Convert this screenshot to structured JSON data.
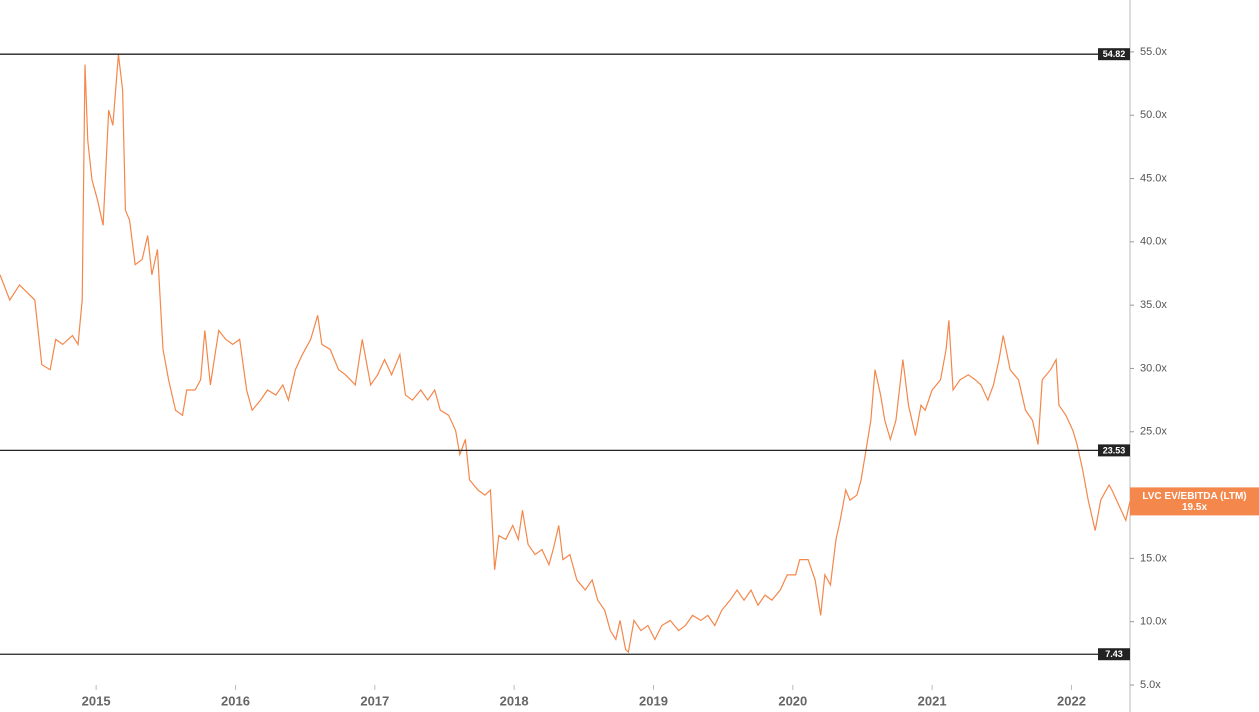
{
  "chart_data": {
    "type": "line",
    "series": [
      {
        "name": "LVC EV/EBITDA (LTM)",
        "color": "#f4874b",
        "x": [
          2014.31,
          2014.38,
          2014.45,
          2014.56,
          2014.61,
          2014.67,
          2014.71,
          2014.76,
          2014.83,
          2014.87,
          2014.9,
          2014.92,
          2014.94,
          2014.97,
          2015.01,
          2015.05,
          2015.09,
          2015.12,
          2015.16,
          2015.19,
          2015.21,
          2015.24,
          2015.28,
          2015.33,
          2015.37,
          2015.4,
          2015.44,
          2015.46,
          2015.48,
          2015.52,
          2015.57,
          2015.62,
          2015.65,
          2015.71,
          2015.75,
          2015.78,
          2015.82,
          2015.88,
          2015.93,
          2015.98,
          2016.03,
          2016.08,
          2016.12,
          2016.18,
          2016.23,
          2016.29,
          2016.34,
          2016.38,
          2016.43,
          2016.48,
          2016.54,
          2016.59,
          2016.62,
          2016.68,
          2016.74,
          2016.79,
          2016.86,
          2016.91,
          2016.97,
          2017.02,
          2017.07,
          2017.12,
          2017.18,
          2017.22,
          2017.27,
          2017.33,
          2017.38,
          2017.43,
          2017.47,
          2017.53,
          2017.58,
          2017.61,
          2017.65,
          2017.68,
          2017.74,
          2017.79,
          2017.83,
          2017.86,
          2017.89,
          2017.94,
          2017.99,
          2018.03,
          2018.06,
          2018.1,
          2018.15,
          2018.2,
          2018.25,
          2018.28,
          2018.32,
          2018.35,
          2018.4,
          2018.45,
          2018.51,
          2018.56,
          2018.6,
          2018.65,
          2018.69,
          2018.73,
          2018.76,
          2018.8,
          2018.82,
          2018.86,
          2018.91,
          2018.96,
          2019.01,
          2019.06,
          2019.12,
          2019.18,
          2019.23,
          2019.28,
          2019.34,
          2019.39,
          2019.44,
          2019.49,
          2019.55,
          2019.6,
          2019.65,
          2019.7,
          2019.75,
          2019.8,
          2019.85,
          2019.91,
          2019.96,
          2020.02,
          2020.05,
          2020.11,
          2020.16,
          2020.2,
          2020.23,
          2020.27,
          2020.31,
          2020.34,
          2020.38,
          2020.41,
          2020.46,
          2020.49,
          2020.52,
          2020.56,
          2020.59,
          2020.63,
          2020.66,
          2020.7,
          2020.74,
          2020.79,
          2020.83,
          2020.88,
          2020.92,
          2020.95,
          2021.0,
          2021.06,
          2021.1,
          2021.12,
          2021.15,
          2021.2,
          2021.26,
          2021.31,
          2021.35,
          2021.4,
          2021.44,
          2021.48,
          2021.51,
          2021.56,
          2021.62,
          2021.67,
          2021.72,
          2021.76,
          2021.79,
          2021.85,
          2021.89,
          2021.91,
          2021.96,
          2022.01,
          2022.04,
          2022.08,
          2022.12,
          2022.17,
          2022.21,
          2022.27,
          2022.29,
          2022.34,
          2022.39,
          2022.42
        ],
        "values": [
          37.4,
          35.4,
          36.6,
          35.4,
          30.3,
          29.9,
          32.3,
          31.9,
          32.6,
          31.9,
          35.4,
          54.0,
          48.0,
          44.9,
          43.3,
          41.3,
          50.4,
          49.2,
          54.8,
          52.0,
          42.5,
          41.7,
          38.2,
          38.6,
          40.5,
          37.4,
          39.4,
          35.4,
          31.5,
          29.1,
          26.7,
          26.3,
          28.3,
          28.3,
          29.1,
          33.0,
          28.7,
          33.0,
          32.3,
          31.9,
          32.3,
          28.3,
          26.7,
          27.5,
          28.3,
          27.9,
          28.7,
          27.5,
          29.9,
          31.1,
          32.3,
          34.2,
          31.9,
          31.5,
          29.9,
          29.5,
          28.7,
          32.3,
          28.7,
          29.5,
          30.7,
          29.5,
          31.1,
          27.9,
          27.5,
          28.3,
          27.5,
          28.3,
          26.7,
          26.3,
          25.1,
          23.2,
          24.4,
          21.2,
          20.4,
          20.0,
          20.4,
          14.1,
          16.8,
          16.5,
          17.6,
          16.5,
          18.8,
          16.1,
          15.3,
          15.7,
          14.5,
          15.7,
          17.6,
          14.9,
          15.3,
          13.3,
          12.5,
          13.3,
          11.7,
          10.9,
          9.3,
          8.6,
          10.1,
          7.8,
          7.6,
          10.1,
          9.3,
          9.7,
          8.6,
          9.7,
          10.1,
          9.3,
          9.7,
          10.5,
          10.1,
          10.5,
          9.7,
          10.9,
          11.7,
          12.5,
          11.7,
          12.5,
          11.3,
          12.1,
          11.7,
          12.5,
          13.7,
          13.7,
          14.9,
          14.9,
          13.3,
          10.5,
          13.7,
          12.9,
          16.5,
          18.0,
          20.4,
          19.6,
          20.0,
          21.2,
          23.2,
          25.9,
          29.9,
          27.9,
          25.9,
          24.4,
          25.9,
          30.7,
          27.1,
          24.7,
          27.1,
          26.7,
          28.3,
          29.1,
          31.5,
          33.8,
          28.3,
          29.1,
          29.5,
          29.1,
          28.7,
          27.5,
          28.7,
          30.7,
          32.6,
          29.9,
          29.1,
          26.7,
          25.9,
          24.0,
          29.1,
          29.9,
          30.7,
          27.1,
          26.3,
          25.1,
          24.0,
          22.0,
          19.6,
          17.2,
          19.6,
          20.8,
          20.4,
          19.2,
          18.0,
          19.5
        ]
      }
    ],
    "last_value": {
      "value": 19.5,
      "label": "19.5x"
    },
    "reference_lines": [
      54.82,
      23.53,
      7.43
    ],
    "xlim": [
      2014.31,
      2022.42
    ],
    "xticks": [
      2015,
      2016,
      2017,
      2018,
      2019,
      2020,
      2021,
      2022
    ],
    "ylim": [
      5,
      59.1
    ],
    "yticks": [
      {
        "value": 5,
        "label": "5.0x"
      },
      {
        "value": 10,
        "label": "10.0x"
      },
      {
        "value": 15,
        "label": "15.0x"
      },
      {
        "value": 20,
        "label": "20.0x"
      },
      {
        "value": 25,
        "label": "25.0x"
      },
      {
        "value": 30,
        "label": "30.0x"
      },
      {
        "value": 35,
        "label": "35.0x"
      },
      {
        "value": 40,
        "label": "40.0x"
      },
      {
        "value": 45,
        "label": "45.0x"
      },
      {
        "value": 50,
        "label": "50.0x"
      },
      {
        "value": 55,
        "label": "55.0x"
      }
    ]
  }
}
